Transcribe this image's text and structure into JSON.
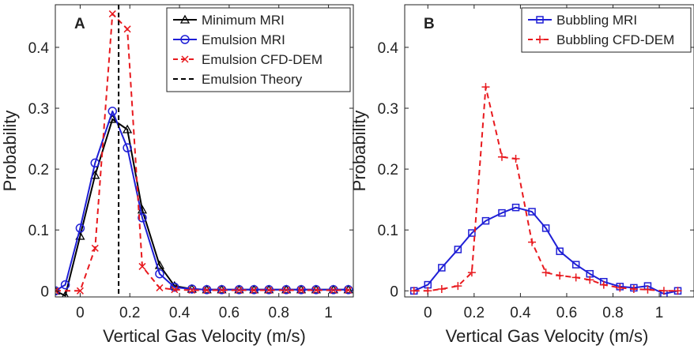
{
  "colors": {
    "black": "#000000",
    "blue": "#1f1fd6",
    "red": "#e8191e",
    "axis": "#222222"
  },
  "chart_data": [
    {
      "panel_label": "A",
      "type": "line",
      "xlabel": "Vertical Gas Velocity (m/s)",
      "ylabel": "Probability",
      "xlim": [
        -0.1,
        1.1
      ],
      "ylim": [
        -0.01,
        0.47
      ],
      "xticks": [
        0,
        0.2,
        0.4,
        0.6,
        0.8,
        1
      ],
      "xtick_labels": [
        "0",
        "0.2",
        "0.4",
        "0.6",
        "0.8",
        "1"
      ],
      "yticks": [
        0,
        0.1,
        0.2,
        0.3,
        0.4
      ],
      "ytick_labels": [
        "0",
        "0.1",
        "0.2",
        "0.3",
        "0.4"
      ],
      "legend_position": "top-right",
      "series": [
        {
          "name": "Minimum MRI",
          "color": "#000000",
          "dash": "solid",
          "marker": "triangle",
          "x": [
            -0.1,
            -0.06,
            0.0,
            0.06,
            0.13,
            0.19,
            0.25,
            0.32,
            0.38,
            0.45,
            0.51,
            0.57,
            0.64,
            0.7,
            0.76,
            0.83,
            0.89,
            0.95,
            1.02,
            1.08
          ],
          "y": [
            0.0,
            -0.008,
            0.09,
            0.19,
            0.282,
            0.265,
            0.133,
            0.042,
            0.008,
            0.003,
            0.002,
            0.002,
            0.002,
            0.002,
            0.002,
            0.002,
            0.002,
            0.002,
            0.002,
            0.002
          ]
        },
        {
          "name": "Emulsion MRI",
          "color": "#1f1fd6",
          "dash": "solid",
          "marker": "circle",
          "x": [
            -0.1,
            -0.06,
            0.0,
            0.06,
            0.13,
            0.19,
            0.25,
            0.32,
            0.38,
            0.45,
            0.51,
            0.57,
            0.64,
            0.7,
            0.76,
            0.83,
            0.89,
            0.95,
            1.02,
            1.08
          ],
          "y": [
            0.0,
            0.01,
            0.103,
            0.21,
            0.295,
            0.235,
            0.12,
            0.028,
            0.006,
            0.003,
            0.002,
            0.002,
            0.002,
            0.002,
            0.002,
            0.002,
            0.002,
            0.002,
            0.002,
            0.002
          ]
        },
        {
          "name": "Emulsion CFD-DEM",
          "color": "#e8191e",
          "dash": "dashed",
          "marker": "x",
          "x": [
            -0.1,
            0.0,
            0.06,
            0.13,
            0.19,
            0.25,
            0.32,
            0.38,
            0.45,
            0.51,
            0.57,
            0.64,
            0.7,
            0.76,
            0.83,
            0.89,
            0.95,
            1.02,
            1.08
          ],
          "y": [
            0.0,
            0.0,
            0.07,
            0.455,
            0.43,
            0.04,
            0.005,
            0.002,
            0.001,
            0.001,
            0.001,
            0.001,
            0.001,
            0.001,
            0.001,
            0.001,
            0.001,
            0.001,
            0.001
          ]
        },
        {
          "name": "Emulsion Theory",
          "color": "#000000",
          "dash": "dashed",
          "marker": "none",
          "vline_x": 0.155
        }
      ]
    },
    {
      "panel_label": "B",
      "type": "line",
      "xlabel": "Vertical Gas Velocity (m/s)",
      "ylabel": "Probability",
      "xlim": [
        -0.1,
        1.15
      ],
      "ylim": [
        -0.01,
        0.47
      ],
      "xticks": [
        0,
        0.2,
        0.4,
        0.6,
        0.8,
        1
      ],
      "xtick_labels": [
        "0",
        "0.2",
        "0.4",
        "0.6",
        "0.8",
        "1"
      ],
      "yticks": [
        0,
        0.1,
        0.2,
        0.3,
        0.4
      ],
      "ytick_labels": [
        "0",
        "0.1",
        "0.2",
        "0.3",
        "0.4"
      ],
      "legend_position": "top-right",
      "series": [
        {
          "name": "Bubbling MRI",
          "color": "#1f1fd6",
          "dash": "solid",
          "marker": "square",
          "x": [
            -0.06,
            0.0,
            0.06,
            0.13,
            0.19,
            0.25,
            0.32,
            0.38,
            0.45,
            0.51,
            0.57,
            0.64,
            0.7,
            0.76,
            0.83,
            0.89,
            0.95,
            1.02,
            1.08
          ],
          "y": [
            0.0,
            0.01,
            0.038,
            0.068,
            0.095,
            0.115,
            0.128,
            0.137,
            0.13,
            0.103,
            0.065,
            0.043,
            0.028,
            0.015,
            0.007,
            0.005,
            0.008,
            -0.005,
            0.0
          ]
        },
        {
          "name": "Bubbling CFD-DEM",
          "color": "#e8191e",
          "dash": "dashed",
          "marker": "plus",
          "x": [
            -0.06,
            0.0,
            0.06,
            0.13,
            0.19,
            0.25,
            0.32,
            0.38,
            0.45,
            0.51,
            0.57,
            0.64,
            0.7,
            0.76,
            0.83,
            0.89,
            0.95,
            1.02,
            1.08
          ],
          "y": [
            0.0,
            0.0,
            0.003,
            0.008,
            0.03,
            0.335,
            0.22,
            0.217,
            0.08,
            0.03,
            0.025,
            0.022,
            0.018,
            0.01,
            0.005,
            0.003,
            0.002,
            0.0,
            0.0
          ]
        }
      ]
    }
  ]
}
